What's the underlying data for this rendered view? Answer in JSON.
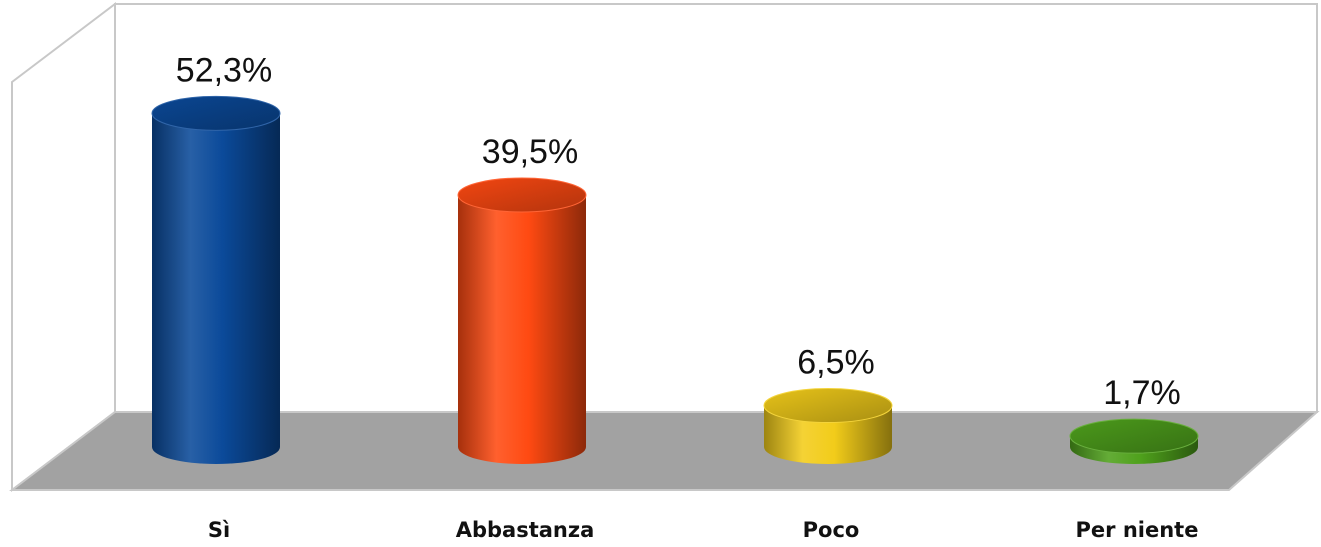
{
  "chart_data": {
    "type": "bar",
    "style": "3d-cylinder",
    "categories": [
      "Sì",
      "Abbastanza",
      "Poco",
      "Per niente"
    ],
    "values": [
      52.3,
      39.5,
      6.5,
      1.7
    ],
    "value_labels": [
      "52,3%",
      "39,5%",
      "6,5%",
      "1,7%"
    ],
    "unit": "%",
    "ylim": [
      0,
      60
    ],
    "grid": false,
    "legend": "none",
    "colors": [
      "#0b4a9a",
      "#ff4a12",
      "#f2cc1a",
      "#4fa11c"
    ]
  },
  "colors": {
    "floor": "#a2a2a2",
    "wall_border": "#c8c8c8"
  }
}
